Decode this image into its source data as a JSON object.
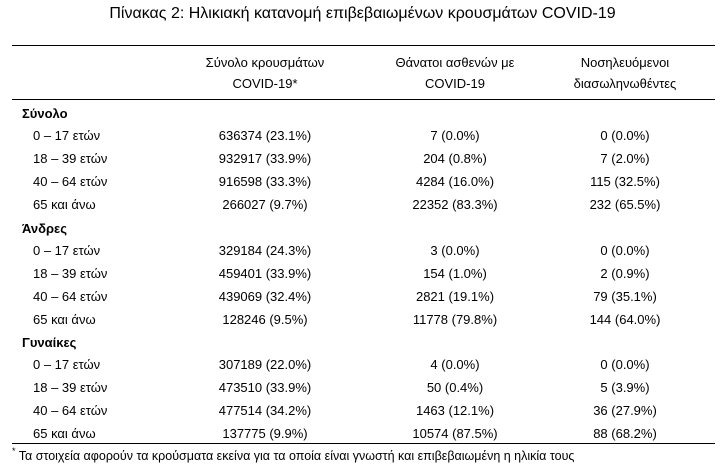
{
  "title": "Πίνακας 2: Ηλικιακή κατανομή επιβεβαιωμένων κρουσμάτων COVID-19",
  "columns": [
    {
      "line1": "Σύνολο κρουσμάτων",
      "line2": "COVID-19*"
    },
    {
      "line1": "Θάνατοι ασθενών με",
      "line2": "COVID-19"
    },
    {
      "line1": "Νοσηλευόμενοι",
      "line2": "διασωληνωθέντες"
    }
  ],
  "groups": [
    {
      "name": "Σύνολο",
      "rows": [
        {
          "label": "0 – 17 ετών",
          "cases": "636374 (23.1%)",
          "deaths": "7 (0.0%)",
          "intubated": "0 (0.0%)"
        },
        {
          "label": "18 – 39 ετών",
          "cases": "932917 (33.9%)",
          "deaths": "204 (0.8%)",
          "intubated": "7 (2.0%)"
        },
        {
          "label": "40 – 64 ετών",
          "cases": "916598 (33.3%)",
          "deaths": "4284 (16.0%)",
          "intubated": "115 (32.5%)"
        },
        {
          "label": "65 και άνω",
          "cases": "266027 (9.7%)",
          "deaths": "22352 (83.3%)",
          "intubated": "232 (65.5%)"
        }
      ]
    },
    {
      "name": "Άνδρες",
      "rows": [
        {
          "label": "0 – 17 ετών",
          "cases": "329184 (24.3%)",
          "deaths": "3 (0.0%)",
          "intubated": "0 (0.0%)"
        },
        {
          "label": "18 – 39 ετών",
          "cases": "459401 (33.9%)",
          "deaths": "154 (1.0%)",
          "intubated": "2 (0.9%)"
        },
        {
          "label": "40 – 64 ετών",
          "cases": "439069 (32.4%)",
          "deaths": "2821 (19.1%)",
          "intubated": "79 (35.1%)"
        },
        {
          "label": "65 και άνω",
          "cases": "128246 (9.5%)",
          "deaths": "11778 (79.8%)",
          "intubated": "144 (64.0%)"
        }
      ]
    },
    {
      "name": "Γυναίκες",
      "rows": [
        {
          "label": "0 – 17 ετών",
          "cases": "307189 (22.0%)",
          "deaths": "4 (0.0%)",
          "intubated": "0 (0.0%)"
        },
        {
          "label": "18 – 39 ετών",
          "cases": "473510 (33.9%)",
          "deaths": "50 (0.4%)",
          "intubated": "5 (3.9%)"
        },
        {
          "label": "40 – 64 ετών",
          "cases": "477514 (34.2%)",
          "deaths": "1463 (12.1%)",
          "intubated": "36 (27.9%)"
        },
        {
          "label": "65 και άνω",
          "cases": "137775 (9.9%)",
          "deaths": "10574 (87.5%)",
          "intubated": "88 (68.2%)"
        }
      ]
    }
  ],
  "footnote": {
    "marker": "*",
    "text": "Τα στοιχεία αφορούν τα κρούσματα εκείνα για τα οποία είναι γνωστή και επιβεβαιωμένη η ηλικία τους"
  }
}
